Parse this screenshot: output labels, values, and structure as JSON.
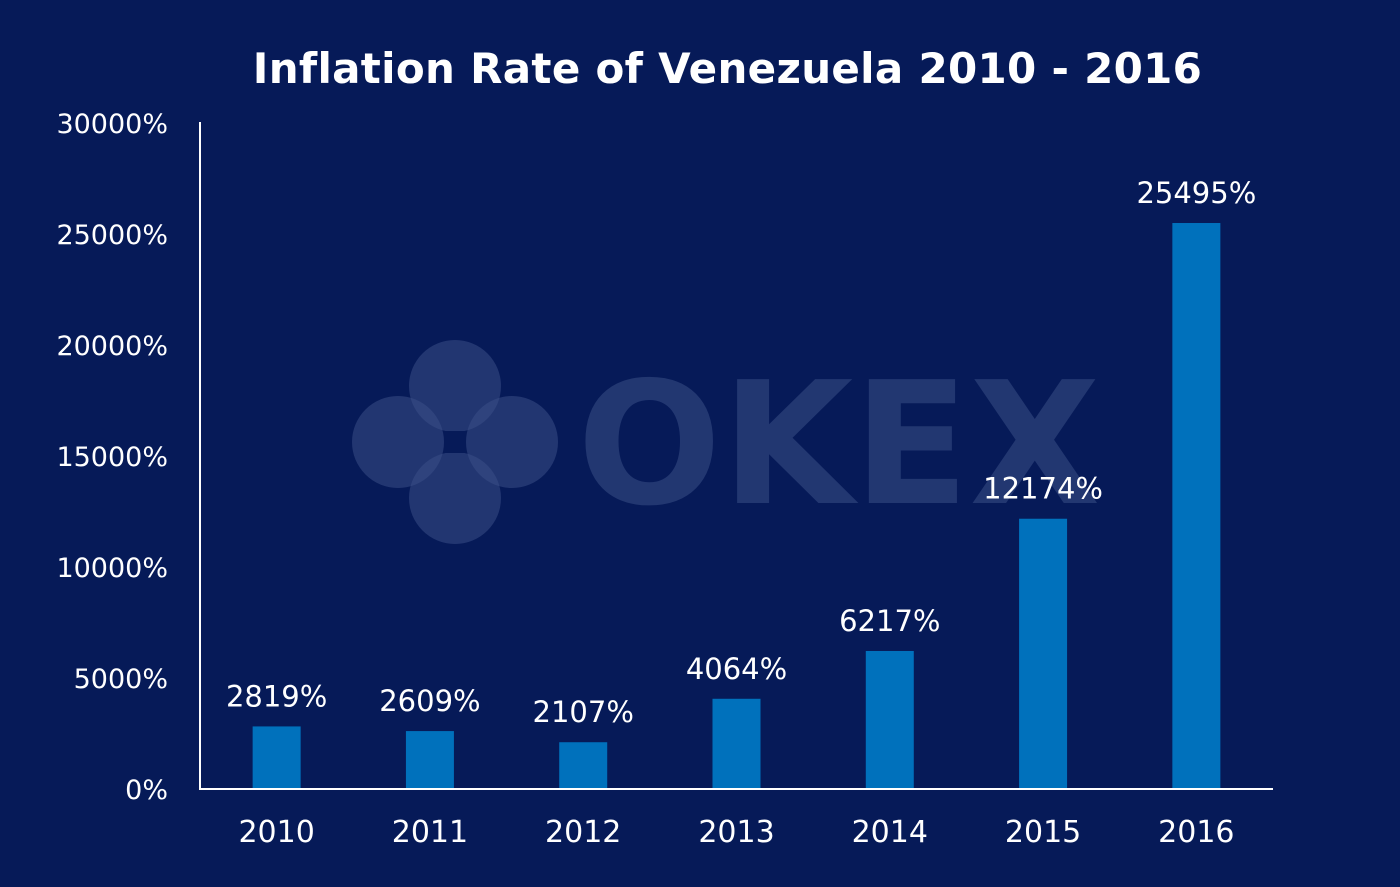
{
  "chart_data": {
    "type": "bar",
    "title": "Inflation Rate of Venezuela 2010 - 2016",
    "xlabel": "",
    "ylabel": "",
    "categories": [
      "2010",
      "2011",
      "2012",
      "2013",
      "2014",
      "2015",
      "2016"
    ],
    "values": [
      2819,
      2609,
      2107,
      4064,
      6217,
      12174,
      25495
    ],
    "data_labels": [
      "2819%",
      "2609%",
      "2107%",
      "4064%",
      "6217%",
      "12174%",
      "25495%"
    ],
    "ylim": [
      0,
      30000
    ],
    "y_ticks": [
      0,
      5000,
      10000,
      15000,
      20000,
      25000,
      30000
    ],
    "y_tick_labels": [
      "0%",
      "5000%",
      "10000%",
      "15000%",
      "20000%",
      "25000%",
      "30000%"
    ],
    "grid": false,
    "legend": "none",
    "colors": {
      "background": "#061a58",
      "bar": "#0071bc",
      "text": "#ffffff",
      "watermark": "#3a4f86"
    }
  },
  "watermark": {
    "text": "OKEX",
    "icon": "okex-logo-icon"
  }
}
